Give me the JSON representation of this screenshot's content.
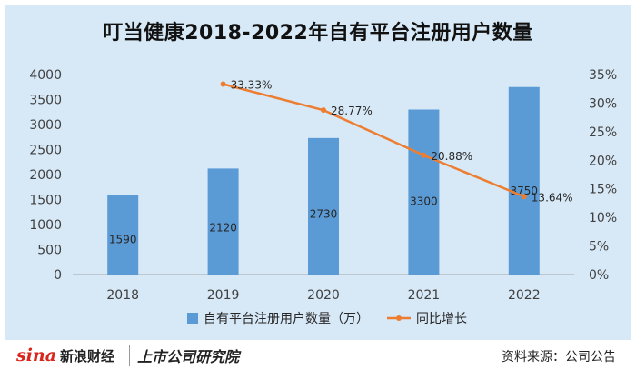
{
  "chart_data": {
    "type": "bar",
    "title": "叮当健康2018-2022年自有平台注册用户数量",
    "categories": [
      "2018",
      "2019",
      "2020",
      "2021",
      "2022"
    ],
    "series": [
      {
        "name": "自有平台注册用户数量（万）",
        "type": "bar",
        "axis": "left",
        "values": [
          1590,
          2120,
          2730,
          3300,
          3750
        ],
        "labels": [
          "1590",
          "2120",
          "2730",
          "3300",
          "3750"
        ],
        "color": "#5b9bd5"
      },
      {
        "name": "同比增长",
        "type": "line",
        "axis": "right",
        "values": [
          null,
          33.33,
          28.77,
          20.88,
          13.64
        ],
        "labels": [
          "",
          "33.33%",
          "28.77%",
          "20.88%",
          "13.64%"
        ],
        "color": "#ed7d31"
      }
    ],
    "y_left": {
      "min": 0,
      "max": 4000,
      "step": 500,
      "ticks": [
        "0",
        "500",
        "1000",
        "1500",
        "2000",
        "2500",
        "3000",
        "3500",
        "4000"
      ]
    },
    "y_right": {
      "min": 0,
      "max": 35,
      "step": 5,
      "ticks": [
        "0%",
        "5%",
        "10%",
        "15%",
        "20%",
        "25%",
        "30%",
        "35%"
      ]
    },
    "legend": "bottom",
    "grid": false
  },
  "footer": {
    "logo_mark": "sina",
    "logo_brand": "新浪财经",
    "logo_institute": "上市公司研究院",
    "source": "资料来源：公司公告"
  }
}
